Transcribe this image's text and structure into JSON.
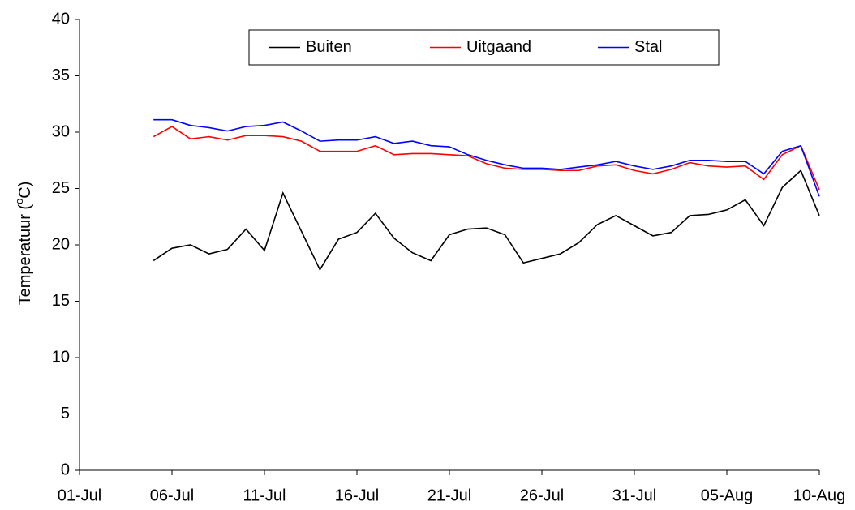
{
  "chart_data": {
    "type": "line",
    "ylabel_parts": [
      "Temperatuur (",
      "o",
      "C)"
    ],
    "x": [
      "05-Jul",
      "06-Jul",
      "07-Jul",
      "08-Jul",
      "09-Jul",
      "10-Jul",
      "11-Jul",
      "12-Jul",
      "13-Jul",
      "14-Jul",
      "15-Jul",
      "16-Jul",
      "17-Jul",
      "18-Jul",
      "19-Jul",
      "20-Jul",
      "21-Jul",
      "22-Jul",
      "23-Jul",
      "24-Jul",
      "25-Jul",
      "26-Jul",
      "27-Jul",
      "28-Jul",
      "29-Jul",
      "30-Jul",
      "31-Jul",
      "01-Aug",
      "02-Aug",
      "03-Aug",
      "04-Aug",
      "05-Aug",
      "06-Aug",
      "07-Aug",
      "08-Aug",
      "09-Aug",
      "10-Aug"
    ],
    "series": [
      {
        "name": "Buiten",
        "color": "#000000",
        "values": [
          18.6,
          19.7,
          20.0,
          19.2,
          19.6,
          21.4,
          19.5,
          24.6,
          21.2,
          17.8,
          20.5,
          21.1,
          22.8,
          20.6,
          19.3,
          18.6,
          20.9,
          21.4,
          21.5,
          20.9,
          18.4,
          18.8,
          19.2,
          20.2,
          21.8,
          22.6,
          21.7,
          20.8,
          21.1,
          22.6,
          22.7,
          23.1,
          24.0,
          21.7,
          25.1,
          26.6,
          22.6
        ]
      },
      {
        "name": "Uitgaand",
        "color": "#ff0000",
        "values": [
          29.6,
          30.5,
          29.4,
          29.6,
          29.3,
          29.7,
          29.7,
          29.6,
          29.2,
          28.3,
          28.3,
          28.3,
          28.8,
          28.0,
          28.1,
          28.1,
          28.0,
          27.9,
          27.2,
          26.8,
          26.7,
          26.7,
          26.6,
          26.6,
          27.0,
          27.1,
          26.6,
          26.3,
          26.7,
          27.3,
          27.0,
          26.9,
          27.0,
          25.8,
          28.0,
          28.8,
          24.9
        ]
      },
      {
        "name": "Stal",
        "color": "#0000ff",
        "values": [
          31.1,
          31.1,
          30.6,
          30.4,
          30.1,
          30.5,
          30.6,
          30.9,
          30.1,
          29.2,
          29.3,
          29.3,
          29.6,
          29.0,
          29.2,
          28.8,
          28.7,
          28.0,
          27.5,
          27.1,
          26.8,
          26.8,
          26.7,
          26.9,
          27.1,
          27.4,
          27.0,
          26.7,
          27.0,
          27.5,
          27.5,
          27.4,
          27.4,
          26.3,
          28.3,
          28.8,
          24.3
        ]
      }
    ],
    "xlim": [
      "01-Jul",
      "10-Aug"
    ],
    "xticks": [
      "01-Jul",
      "06-Jul",
      "11-Jul",
      "16-Jul",
      "21-Jul",
      "26-Jul",
      "31-Jul",
      "05-Aug",
      "10-Aug"
    ],
    "ylim": [
      0,
      40
    ],
    "yticks": [
      0,
      5,
      10,
      15,
      20,
      25,
      30,
      35,
      40
    ],
    "grid": false,
    "legend": "top"
  }
}
